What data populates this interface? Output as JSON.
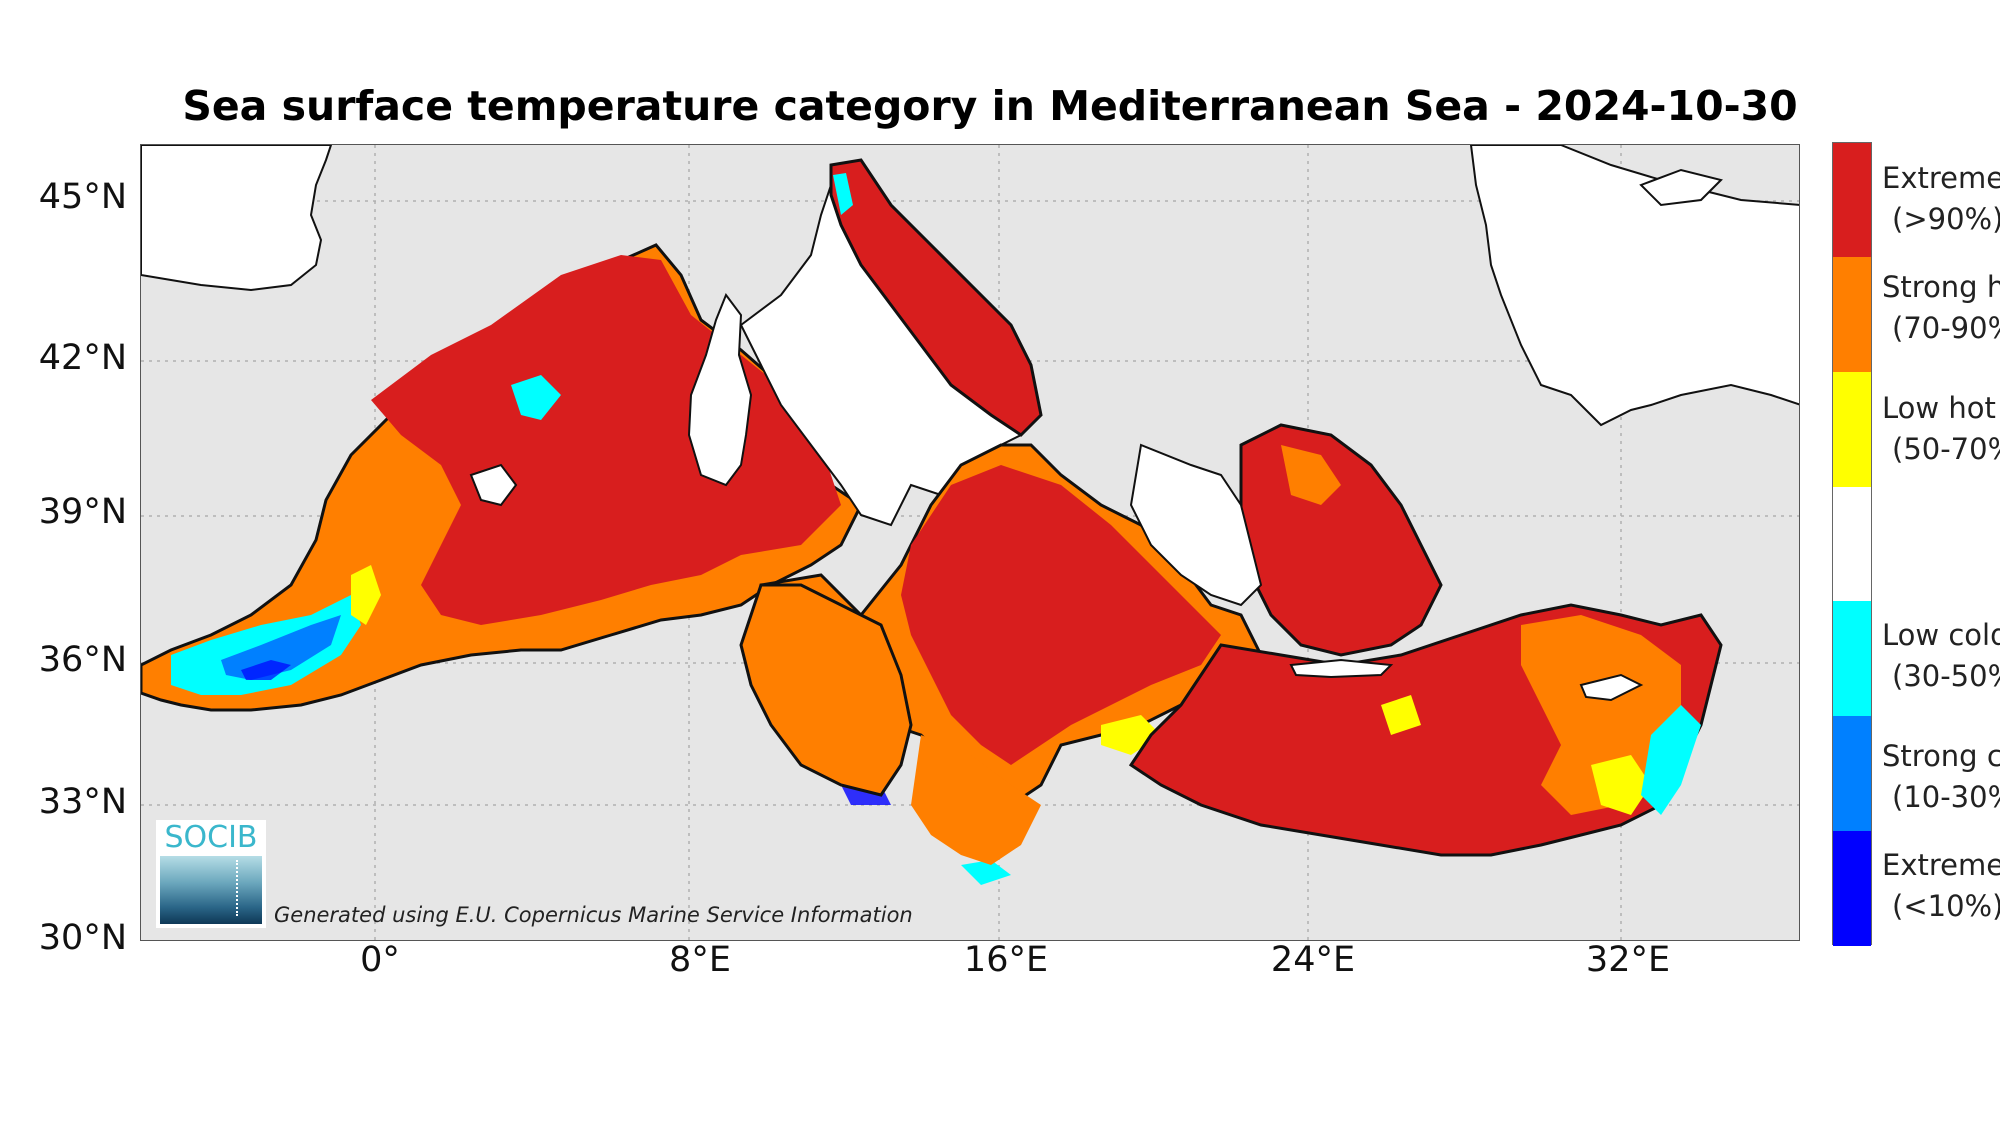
{
  "title": "Sea surface temperature category in Mediterranean Sea - 2024-10-30",
  "axes": {
    "lat_labels": [
      "45°N",
      "42°N",
      "39°N",
      "36°N",
      "33°N",
      "30°N"
    ],
    "lon_labels": [
      "0°",
      "8°E",
      "16°E",
      "24°E",
      "32°E"
    ]
  },
  "credit": "Generated using E.U. Copernicus Marine Service Information",
  "logo": {
    "text": "SOCIB"
  },
  "legend": [
    {
      "label": "Extreme",
      "range": "(>90%)",
      "color": "#d81e1e"
    },
    {
      "label": "Strong h",
      "range": "(70-90%",
      "color": "#ff7f00"
    },
    {
      "label": "Low hot",
      "range": "(50-70%",
      "color": "#ffff00"
    },
    {
      "label": "",
      "range": "",
      "color": "#ffffff"
    },
    {
      "label": "Low cold",
      "range": "(30-50%",
      "color": "#00ffff"
    },
    {
      "label": "Strong c",
      "range": "(10-30%",
      "color": "#0080ff"
    },
    {
      "label": "Extreme",
      "range": "(<10%)",
      "color": "#0000ff"
    }
  ],
  "colors": {
    "land": "#ffffff",
    "background": "#e6e6e6",
    "extreme_hot": "#d81e1e",
    "strong_hot": "#ff7f00",
    "low_hot": "#ffff00",
    "low_cold": "#00ffff",
    "strong_cold": "#0080ff",
    "extreme_cold": "#0000ff"
  }
}
